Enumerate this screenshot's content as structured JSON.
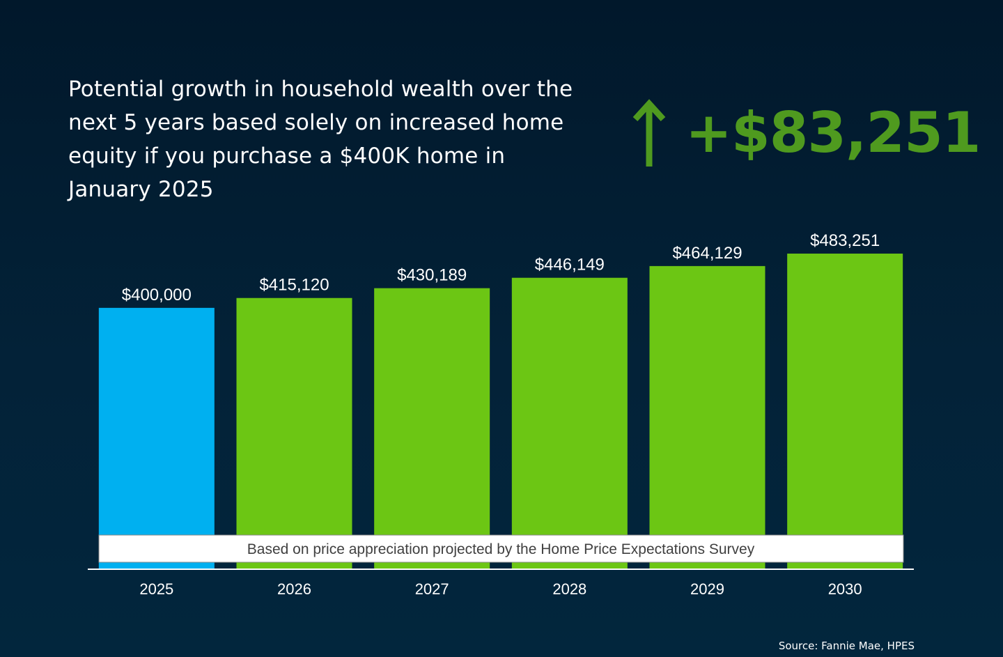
{
  "headline": "Potential growth in household wealth over the next 5 years based solely on increased home equity if you purchase a $400K home in January 2025",
  "growth": {
    "icon": "arrow-up-icon",
    "value": "+$83,251"
  },
  "chart_data": {
    "type": "bar",
    "categories": [
      "2025",
      "2026",
      "2027",
      "2028",
      "2029",
      "2030"
    ],
    "values": [
      400000,
      415120,
      430189,
      446149,
      464129,
      483251
    ],
    "data_labels": [
      "$400,000",
      "$415,120",
      "$430,189",
      "$446,149",
      "$464,129",
      "$483,251"
    ],
    "bar_colors": [
      "#00b0f0",
      "#6cc614",
      "#6cc614",
      "#6cc614",
      "#6cc614",
      "#6cc614"
    ],
    "annotation": "Based on price appreciation projected by the Home Price Expectations Survey",
    "grid": false,
    "legend": "none"
  },
  "colors": {
    "background": "#01182b",
    "accent": "#4f9a1f",
    "highlight_bar": "#00b0f0",
    "projection_bar": "#6cc614"
  },
  "source": "Source: Fannie Mae, HPES"
}
